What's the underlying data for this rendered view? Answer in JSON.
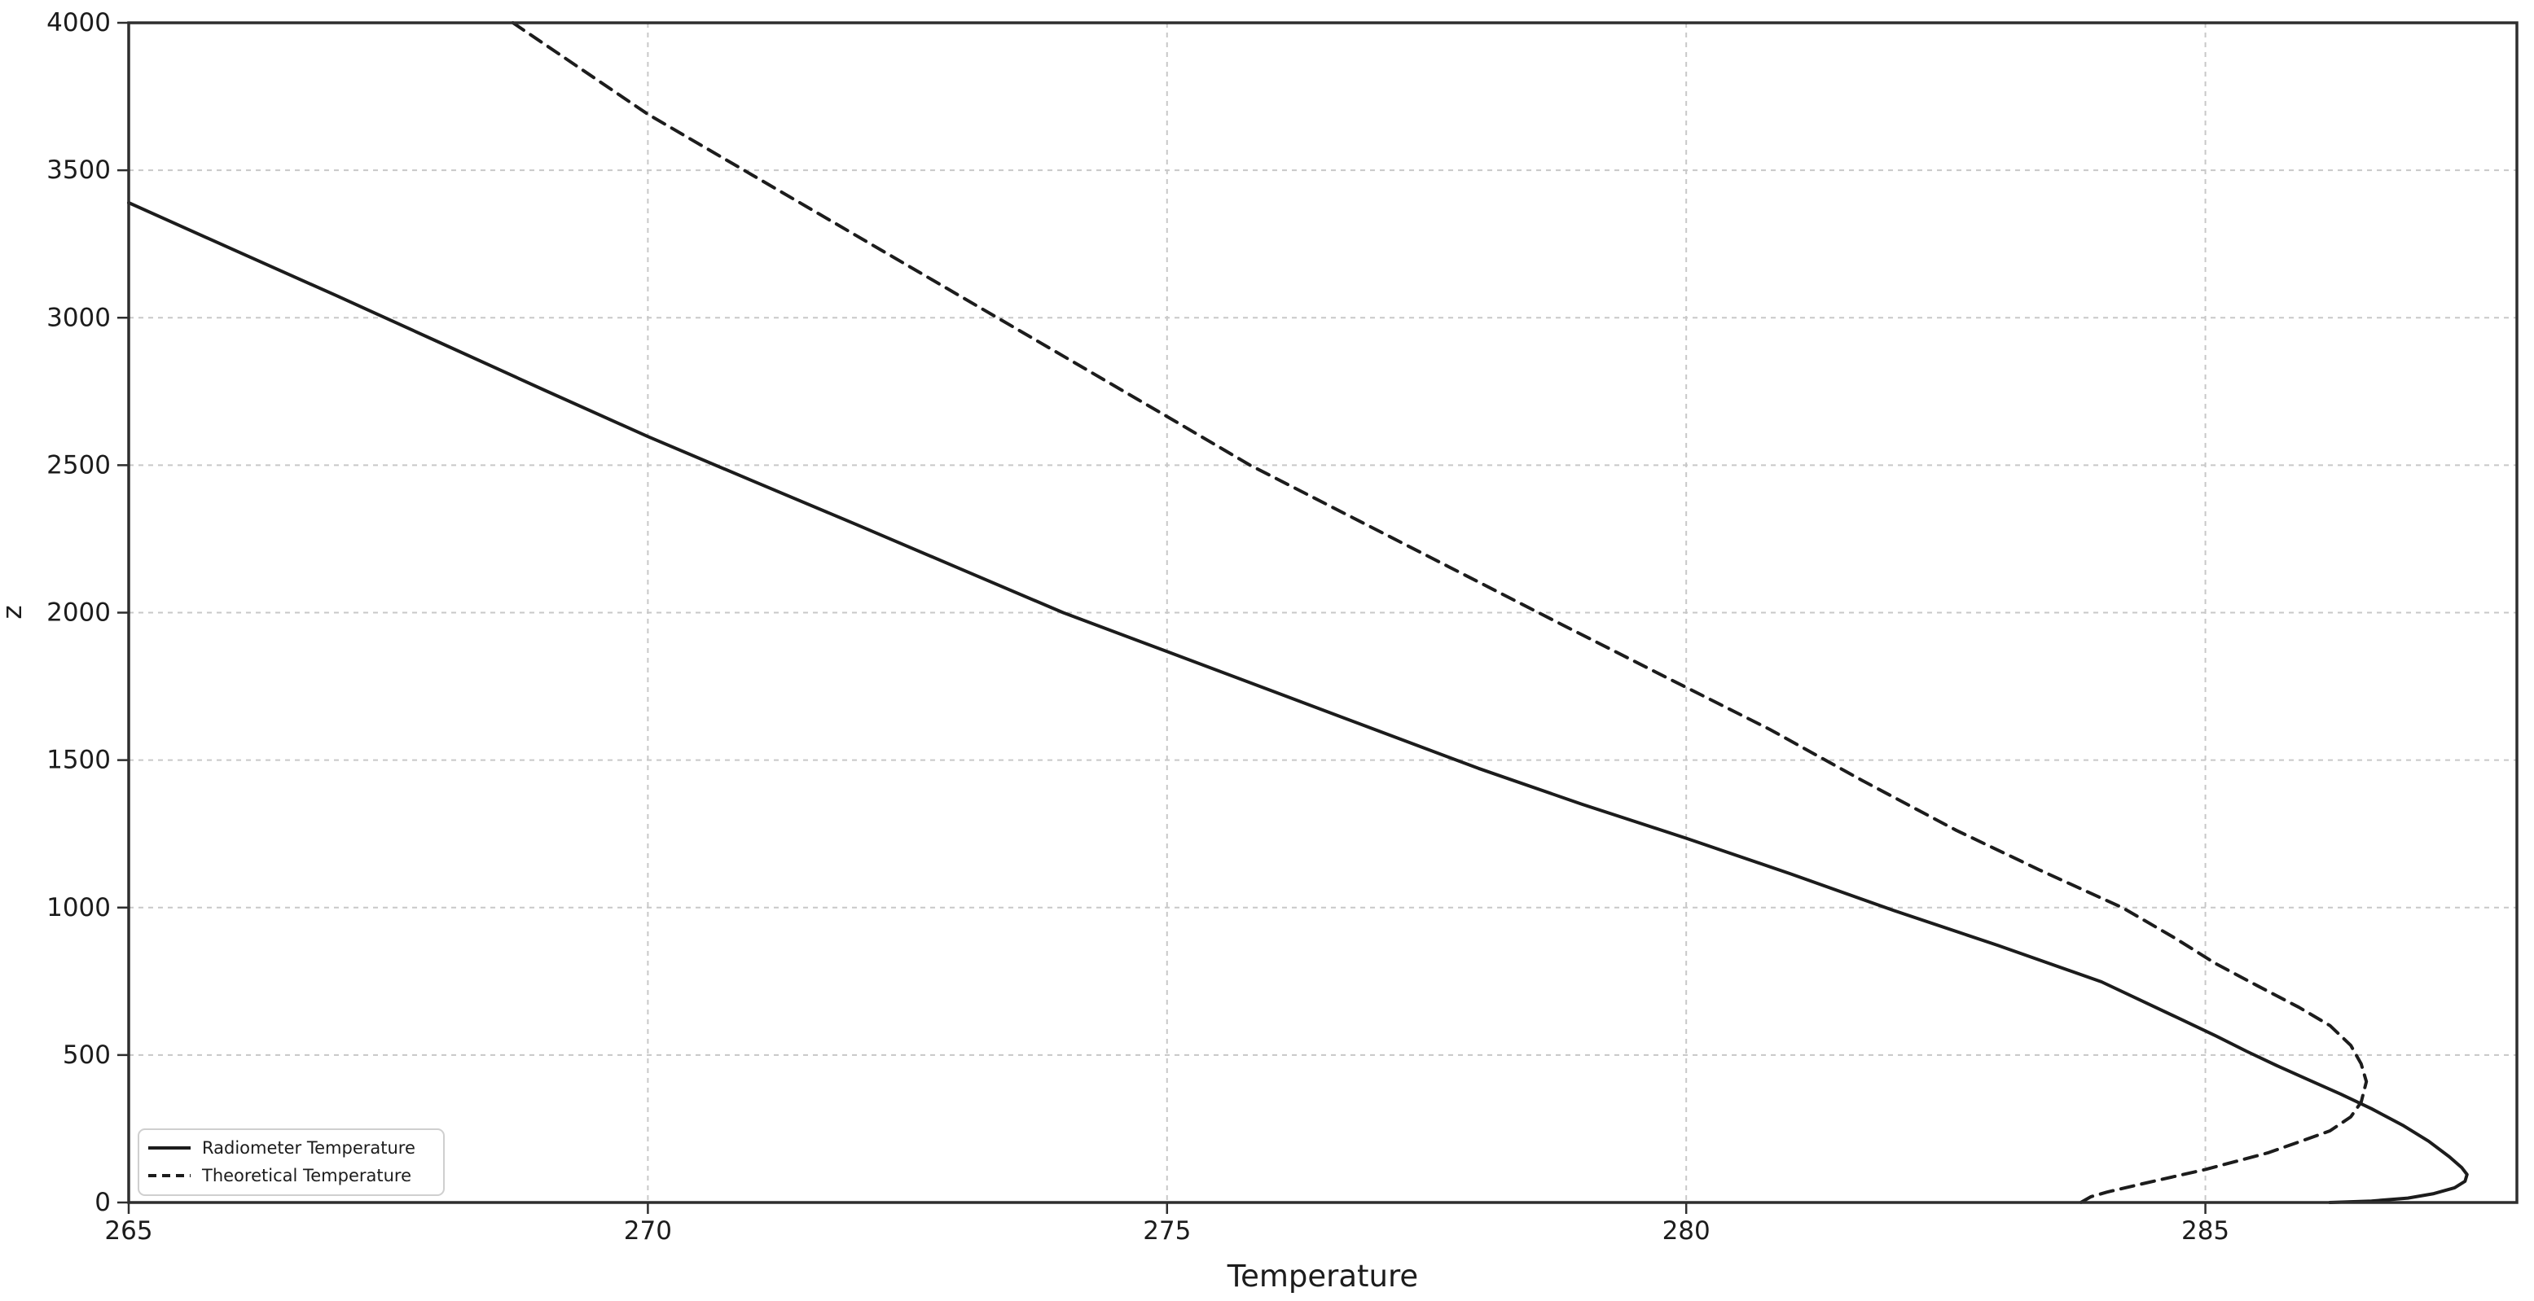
{
  "figure": {
    "background": "#ffffff",
    "colors": {
      "line": "#1c1c1c",
      "grid": "#c8c8c8",
      "spine": "#2e2e2e",
      "text": "#1c1c1c",
      "legend_border": "#cfcfcf",
      "legend_background": "#ffffff"
    }
  },
  "chart_data": {
    "type": "line",
    "title": "",
    "xlabel": "Temperature",
    "ylabel": "z",
    "xlim": [
      265,
      288
    ],
    "ylim": [
      0,
      4000
    ],
    "x_ticks": [
      265,
      270,
      275,
      280,
      285
    ],
    "y_ticks": [
      0,
      500,
      1000,
      1500,
      2000,
      2500,
      3000,
      3500,
      4000
    ],
    "grid": true,
    "legend_position": "lower left",
    "series": [
      {
        "name": "Radiometer Temperature",
        "linestyle": "solid",
        "color": "#1c1c1c",
        "points": [
          [
            265.0,
            3390
          ],
          [
            266.0,
            3232
          ],
          [
            267.0,
            3075
          ],
          [
            268.0,
            2915
          ],
          [
            269.0,
            2755
          ],
          [
            270.0,
            2597
          ],
          [
            271.0,
            2448
          ],
          [
            272.0,
            2300
          ],
          [
            273.0,
            2150
          ],
          [
            274.0,
            2000
          ],
          [
            275.0,
            1868
          ],
          [
            276.0,
            1736
          ],
          [
            277.0,
            1604
          ],
          [
            278.0,
            1472
          ],
          [
            279.0,
            1350
          ],
          [
            280.0,
            1235
          ],
          [
            281.0,
            1115
          ],
          [
            282.0,
            990
          ],
          [
            283.0,
            872
          ],
          [
            284.0,
            748
          ],
          [
            284.7,
            632
          ],
          [
            285.1,
            565
          ],
          [
            285.4,
            512
          ],
          [
            285.7,
            462
          ],
          [
            286.0,
            415
          ],
          [
            286.3,
            368
          ],
          [
            286.6,
            318
          ],
          [
            286.9,
            262
          ],
          [
            287.15,
            208
          ],
          [
            287.35,
            155
          ],
          [
            287.47,
            118
          ],
          [
            287.52,
            95
          ],
          [
            287.5,
            72
          ],
          [
            287.4,
            50
          ],
          [
            287.2,
            30
          ],
          [
            286.95,
            15
          ],
          [
            286.6,
            5
          ],
          [
            286.2,
            0
          ]
        ]
      },
      {
        "name": "Theoretical Temperature",
        "linestyle": "dashed",
        "color": "#1c1c1c",
        "points": [
          [
            268.7,
            4000
          ],
          [
            269.35,
            3845
          ],
          [
            270.0,
            3690
          ],
          [
            271.0,
            3485
          ],
          [
            272.0,
            3280
          ],
          [
            273.0,
            3075
          ],
          [
            274.0,
            2870
          ],
          [
            275.0,
            2665
          ],
          [
            275.8,
            2500
          ],
          [
            276.8,
            2320
          ],
          [
            277.8,
            2140
          ],
          [
            278.8,
            1960
          ],
          [
            279.8,
            1782
          ],
          [
            280.8,
            1605
          ],
          [
            281.7,
            1430
          ],
          [
            282.6,
            1262
          ],
          [
            283.4,
            1128
          ],
          [
            284.2,
            1000
          ],
          [
            284.7,
            898
          ],
          [
            285.1,
            810
          ],
          [
            285.5,
            735
          ],
          [
            285.9,
            662
          ],
          [
            286.2,
            600
          ],
          [
            286.4,
            533
          ],
          [
            286.5,
            470
          ],
          [
            286.55,
            410
          ],
          [
            286.5,
            340
          ],
          [
            286.4,
            290
          ],
          [
            286.2,
            243
          ],
          [
            285.9,
            205
          ],
          [
            285.6,
            168
          ],
          [
            285.3,
            140
          ],
          [
            285.0,
            112
          ],
          [
            284.7,
            88
          ],
          [
            284.35,
            60
          ],
          [
            284.05,
            35
          ],
          [
            283.9,
            20
          ],
          [
            283.8,
            0
          ]
        ]
      }
    ]
  }
}
